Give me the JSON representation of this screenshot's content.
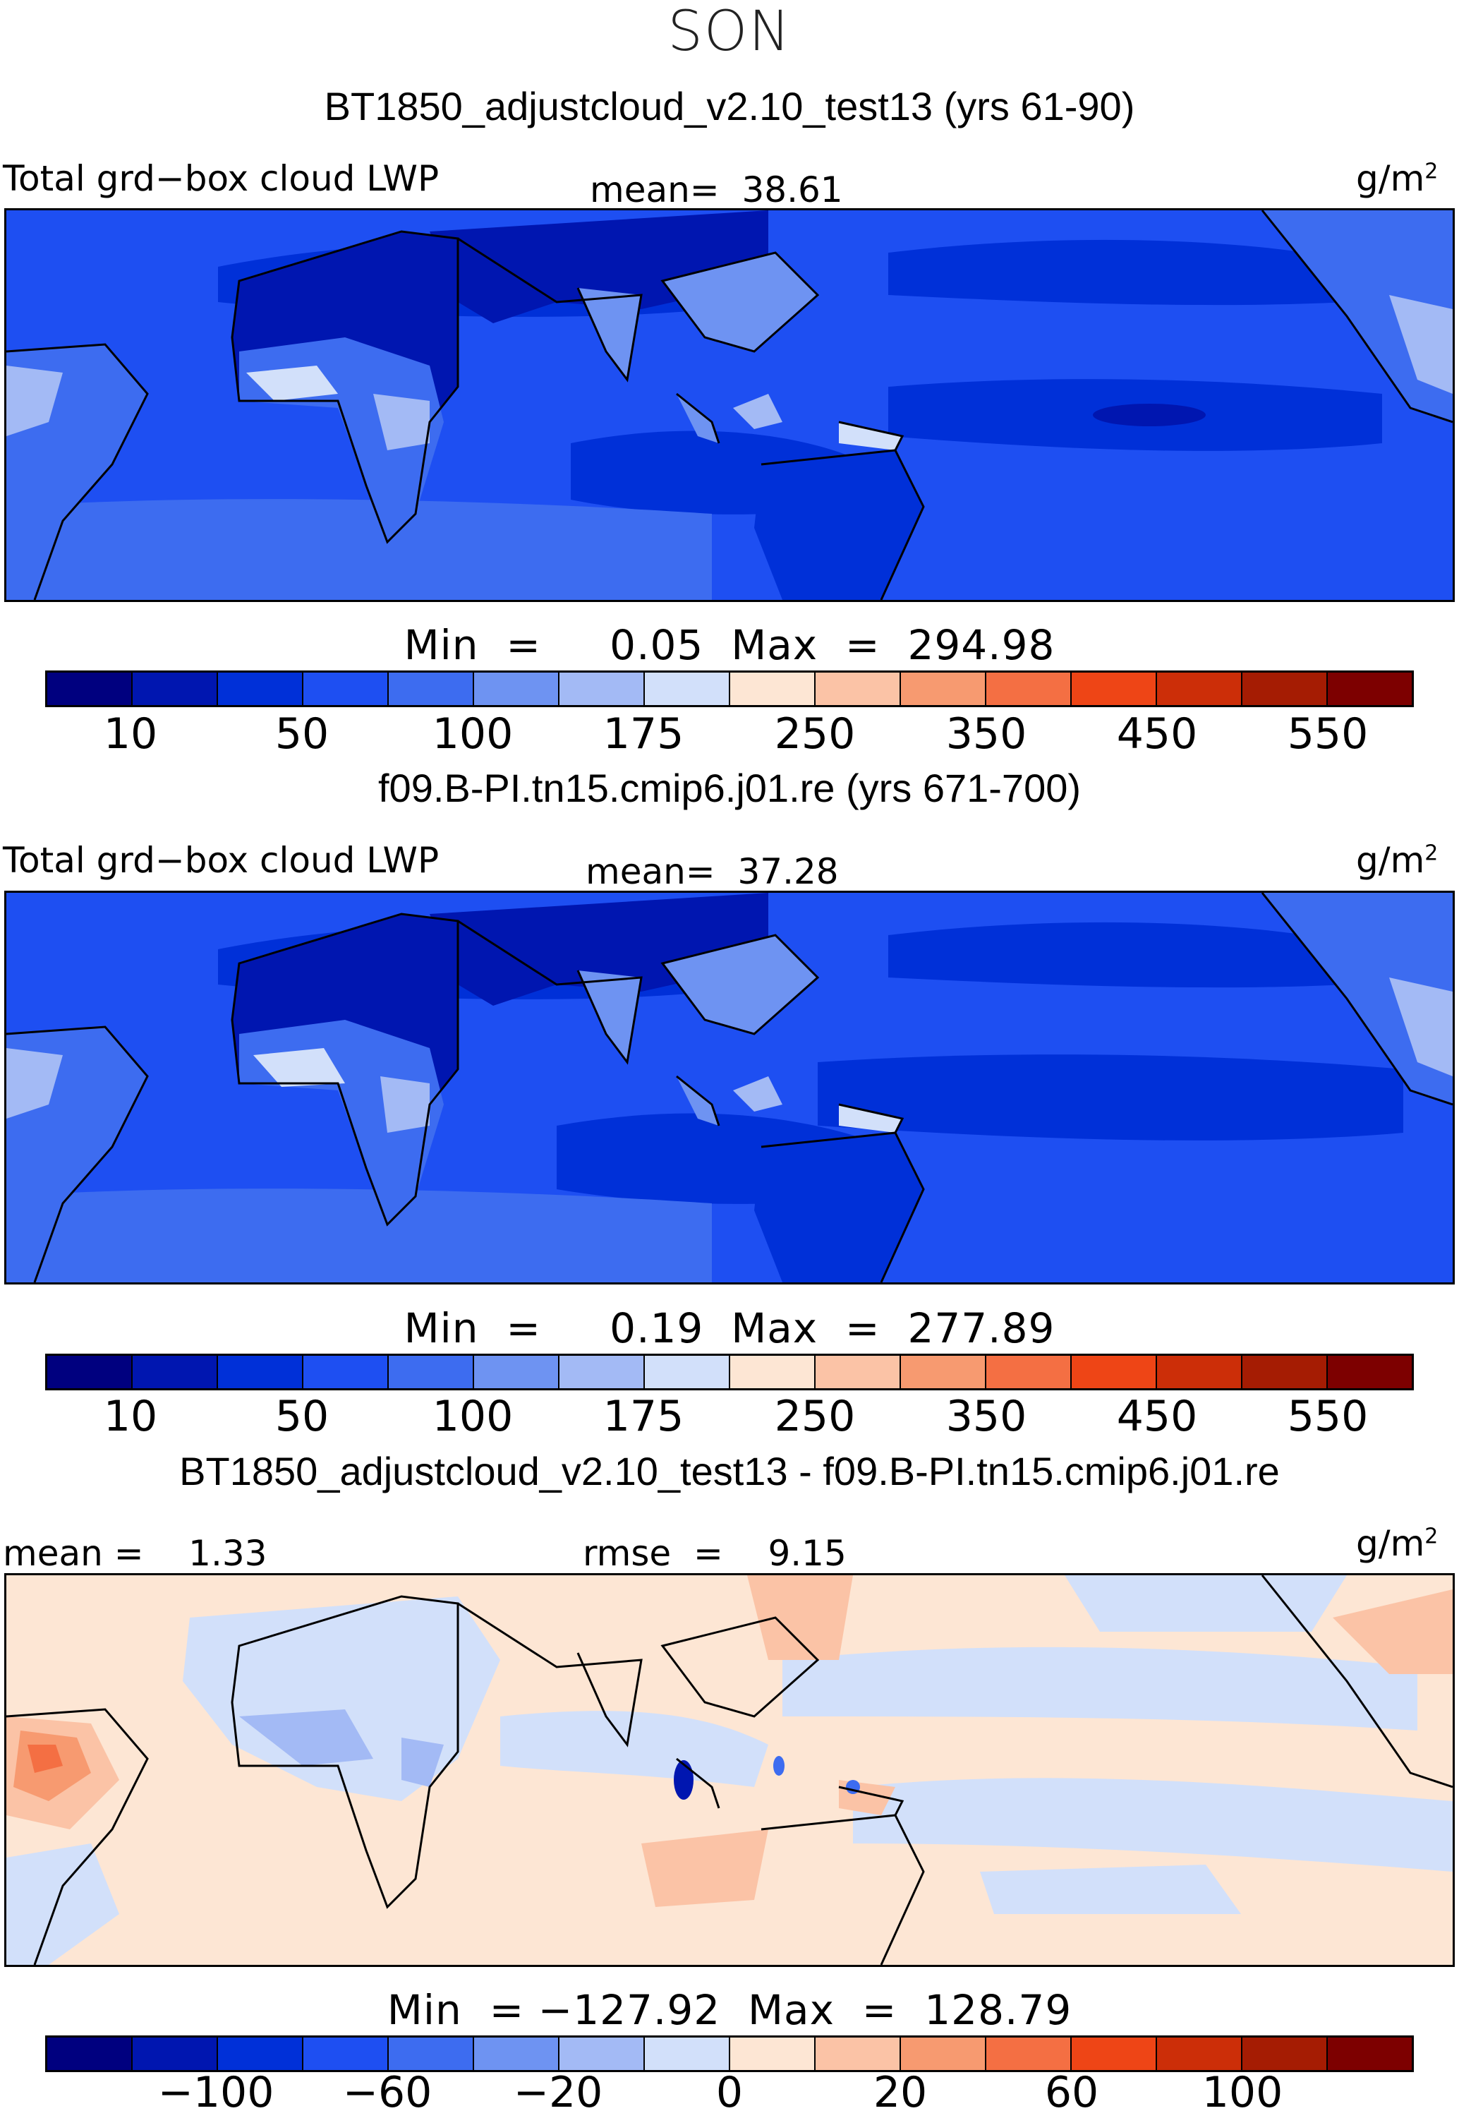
{
  "figure": {
    "season": "SON",
    "colors": {
      "lwp_scale": [
        "#00007f",
        "#0016b0",
        "#0030d8",
        "#1e4ff2",
        "#3d6cf0",
        "#6e93f2",
        "#a3baf5",
        "#d2e0fa",
        "#fde6d4",
        "#fbc3a6",
        "#f79a70",
        "#f46f43",
        "#ee4516",
        "#cc2e08",
        "#a51c03",
        "#7d0000"
      ],
      "diff_scale": [
        "#00007f",
        "#0016b0",
        "#0030d8",
        "#1e4ff2",
        "#3d6cf0",
        "#6e93f2",
        "#a3baf5",
        "#d2e0fa",
        "#fde6d4",
        "#fbc3a6",
        "#f79a70",
        "#f46f43",
        "#ee4516",
        "#cc2e08",
        "#a51c03",
        "#7d0000"
      ]
    }
  },
  "panel1": {
    "case_title": "BT1850_adjustcloud_v2.10_test13 (yrs 61-90)",
    "left_label": "Total grd−box cloud LWP",
    "center_label": "mean=  38.61",
    "units": "g/m",
    "units_sup": "2",
    "minmax": "Min  =     0.05  Max  =  294.98",
    "ticks": [
      "10",
      "50",
      "100",
      "175",
      "250",
      "350",
      "450",
      "550"
    ]
  },
  "panel2": {
    "case_title": "f09.B-PI.tn15.cmip6.j01.re (yrs 671-700)",
    "left_label": "Total grd−box cloud LWP",
    "center_label": "mean=  37.28",
    "units": "g/m",
    "units_sup": "2",
    "minmax": "Min  =     0.19  Max  =  277.89",
    "ticks": [
      "10",
      "50",
      "100",
      "175",
      "250",
      "350",
      "450",
      "550"
    ]
  },
  "panel3": {
    "case_title": "BT1850_adjustcloud_v2.10_test13 - f09.B-PI.tn15.cmip6.j01.re",
    "left_label": "mean =    1.33",
    "center_label": "rmse  =    9.15",
    "units": "g/m",
    "units_sup": "2",
    "minmax": "Min  = −127.92  Max  =  128.79",
    "ticks": [
      "−100",
      "−60",
      "−20",
      "0",
      "20",
      "60",
      "100"
    ]
  }
}
